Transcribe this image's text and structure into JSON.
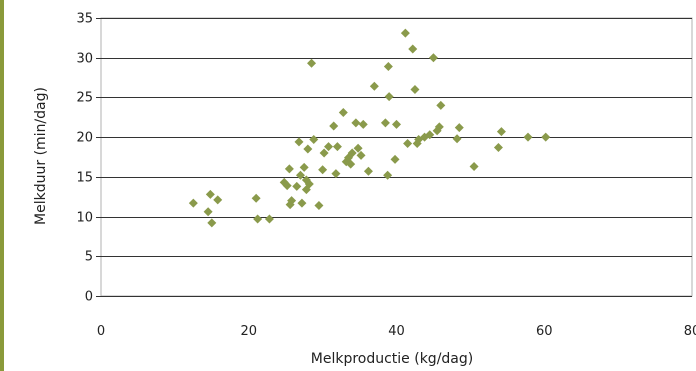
{
  "chart_data": {
    "type": "scatter",
    "title": "",
    "xlabel": "Melkproductie (kg/dag)",
    "ylabel": "Melkduur (min/dag)",
    "xlim": [
      0,
      80
    ],
    "ylim": [
      0,
      35
    ],
    "xticks": [
      0,
      20,
      40,
      60,
      80
    ],
    "yticks": [
      0,
      5,
      10,
      15,
      20,
      25,
      30,
      35
    ],
    "grid": "horizontal",
    "marker": "diamond",
    "colors": {
      "marker": "#8a9a4b",
      "frame": "#b0b0b0",
      "grid": "#333333",
      "accent_bar": "#8a9a3a"
    },
    "series": [
      {
        "x": [
          12.5,
          14.5,
          14.8,
          15.0,
          15.8,
          21.0,
          21.2,
          22.8,
          24.8,
          25.2,
          25.5,
          25.6,
          25.8,
          26.5,
          26.8,
          27.0,
          27.2,
          27.5,
          27.8,
          27.8,
          28.0,
          28.2,
          28.5,
          28.8,
          29.5,
          30.0,
          30.2,
          30.8,
          31.5,
          31.8,
          32.0,
          32.8,
          33.2,
          33.5,
          33.8,
          34.0,
          34.5,
          34.8,
          35.2,
          35.5,
          36.2,
          37.0,
          38.5,
          38.8,
          38.9,
          39.0,
          39.8,
          40.0,
          41.2,
          41.5,
          42.2,
          42.5,
          42.8,
          43.0,
          43.8,
          44.5,
          45.0,
          45.5,
          45.8,
          46.0,
          48.2,
          48.5,
          50.5,
          53.8,
          54.2,
          57.8,
          60.2
        ],
        "y": [
          11.7,
          10.6,
          12.8,
          9.2,
          12.1,
          12.3,
          9.7,
          9.7,
          14.3,
          13.9,
          16.0,
          11.5,
          12.0,
          13.8,
          19.4,
          15.2,
          11.7,
          16.2,
          13.4,
          14.6,
          18.5,
          14.1,
          29.3,
          19.7,
          11.4,
          15.9,
          18.0,
          18.8,
          21.4,
          15.4,
          18.8,
          23.1,
          16.9,
          17.4,
          16.6,
          18.0,
          21.8,
          18.6,
          17.7,
          21.6,
          15.7,
          26.4,
          21.8,
          15.2,
          28.9,
          25.1,
          17.2,
          21.6,
          33.1,
          19.2,
          31.1,
          26.0,
          19.2,
          19.7,
          20.0,
          20.3,
          30.0,
          20.8,
          21.3,
          24.0,
          19.8,
          21.2,
          16.3,
          18.7,
          20.7,
          20.0,
          20.0
        ]
      }
    ]
  }
}
